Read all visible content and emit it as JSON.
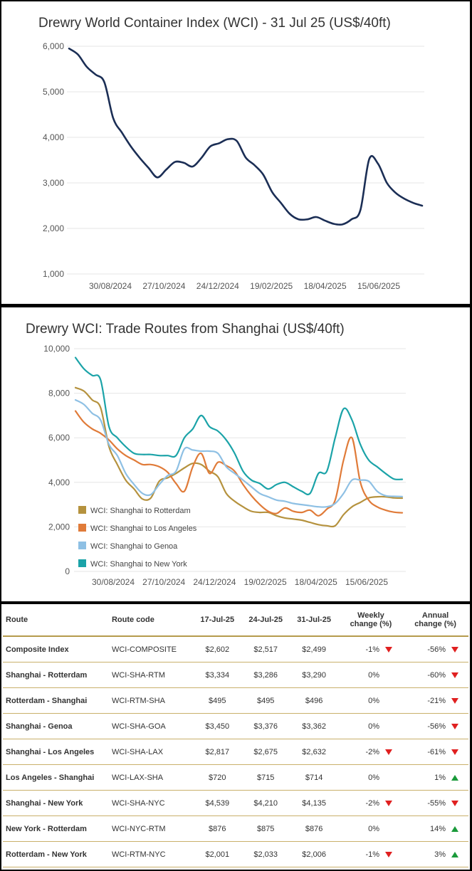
{
  "chart_data": [
    {
      "type": "line",
      "title": "Drewry World Container Index (WCI) - 31 Jul 25 (US$/40ft)",
      "xlabel": "",
      "ylabel": "",
      "ylim": [
        1000,
        6000
      ],
      "yticks": [
        1000,
        2000,
        3000,
        4000,
        5000,
        6000
      ],
      "ytick_labels": [
        "1,000",
        "2,000",
        "3,000",
        "4,000",
        "5,000",
        "6,000"
      ],
      "xticks": [
        "30/08/2024",
        "27/10/2024",
        "24/12/2024",
        "19/02/2025",
        "18/04/2025",
        "15/06/2025"
      ],
      "grid": true,
      "legend": "none",
      "colors": [
        "#1b2e55"
      ],
      "series": [
        {
          "values": [
            5950,
            5820,
            5550,
            5380,
            5210,
            4420,
            4100,
            3800,
            3550,
            3330,
            3120,
            3290,
            3460,
            3440,
            3360,
            3550,
            3800,
            3870,
            3960,
            3920,
            3560,
            3390,
            3180,
            2800,
            2560,
            2320,
            2200,
            2200,
            2250,
            2170,
            2100,
            2090,
            2200,
            2400,
            3520,
            3420,
            3000,
            2780,
            2650,
            2560,
            2499
          ]
        }
      ]
    },
    {
      "type": "line",
      "title": "Drewry WCI: Trade Routes from Shanghai (US$/40ft)",
      "xlabel": "",
      "ylabel": "",
      "ylim": [
        0,
        10000
      ],
      "yticks": [
        0,
        2000,
        4000,
        6000,
        8000,
        10000
      ],
      "ytick_labels": [
        "0",
        "2,000",
        "4,000",
        "6,000",
        "8,000",
        "10,000"
      ],
      "xticks": [
        "30/08/2024",
        "27/10/2024",
        "24/12/2024",
        "19/02/2025",
        "18/04/2025",
        "15/06/2025"
      ],
      "grid": true,
      "legend": "bottom-left",
      "series": [
        {
          "name": "WCI: Shanghai to Rotterdam",
          "color": "#b5923e",
          "values": [
            8250,
            8100,
            7700,
            7350,
            5600,
            4800,
            4100,
            3700,
            3250,
            3300,
            4050,
            4200,
            4400,
            4650,
            4850,
            4800,
            4500,
            4250,
            3500,
            3150,
            2900,
            2700,
            2650,
            2650,
            2500,
            2400,
            2350,
            2300,
            2200,
            2100,
            2050,
            2050,
            2550,
            2900,
            3100,
            3300,
            3350,
            3350,
            3300,
            3290
          ]
        },
        {
          "name": "WCI: Shanghai to Los Angeles",
          "color": "#e07b39",
          "values": [
            7200,
            6700,
            6400,
            6200,
            5900,
            5500,
            5200,
            5000,
            4800,
            4800,
            4700,
            4450,
            3950,
            3600,
            4700,
            5300,
            4400,
            4900,
            4750,
            4500,
            3900,
            3400,
            3000,
            2700,
            2600,
            2850,
            2700,
            2650,
            2750,
            2500,
            2800,
            3200,
            5000,
            6000,
            4000,
            3200,
            2900,
            2750,
            2660,
            2632
          ]
        },
        {
          "name": "WCI: Shanghai to Genoa",
          "color": "#8ec0e4",
          "values": [
            7700,
            7500,
            7100,
            6800,
            5700,
            5200,
            4400,
            3900,
            3500,
            3450,
            3900,
            4300,
            4500,
            5500,
            5450,
            5400,
            5400,
            5300,
            4700,
            4400,
            4100,
            3800,
            3500,
            3350,
            3200,
            3150,
            3050,
            3000,
            2950,
            2900,
            2900,
            3050,
            3500,
            4100,
            4100,
            4050,
            3600,
            3400,
            3370,
            3362
          ]
        },
        {
          "name": "WCI: Shanghai to New York",
          "color": "#1ba3a8",
          "values": [
            9600,
            9100,
            8800,
            8600,
            6500,
            6000,
            5600,
            5300,
            5250,
            5250,
            5200,
            5200,
            5200,
            6000,
            6400,
            7000,
            6500,
            6300,
            5900,
            5300,
            4500,
            4100,
            3950,
            3700,
            3900,
            4000,
            3800,
            3600,
            3500,
            4400,
            4500,
            6000,
            7300,
            6800,
            5700,
            5000,
            4700,
            4400,
            4150,
            4135
          ]
        }
      ]
    }
  ],
  "table": {
    "headers": [
      [
        "Route"
      ],
      [
        "Route code"
      ],
      [
        "17-Jul-25"
      ],
      [
        "24-Jul-25"
      ],
      [
        "31-Jul-25"
      ],
      [
        "Weekly",
        "change (%)"
      ],
      [
        "Annual",
        "change (%)"
      ]
    ],
    "rows": [
      {
        "route": "Composite Index",
        "code": "WCI-COMPOSITE",
        "v1": "$2,602",
        "v2": "$2,517",
        "v3": "$2,499",
        "weekly": "-1%",
        "weekly_dir": "down",
        "annual": "-56%",
        "annual_dir": "down"
      },
      {
        "route": "Shanghai - Rotterdam",
        "code": "WCI-SHA-RTM",
        "v1": "$3,334",
        "v2": "$3,286",
        "v3": "$3,290",
        "weekly": "0%",
        "weekly_dir": "",
        "annual": "-60%",
        "annual_dir": "down"
      },
      {
        "route": "Rotterdam - Shanghai",
        "code": "WCI-RTM-SHA",
        "v1": "$495",
        "v2": "$495",
        "v3": "$496",
        "weekly": "0%",
        "weekly_dir": "",
        "annual": "-21%",
        "annual_dir": "down"
      },
      {
        "route": "Shanghai - Genoa",
        "code": "WCI-SHA-GOA",
        "v1": "$3,450",
        "v2": "$3,376",
        "v3": "$3,362",
        "weekly": "0%",
        "weekly_dir": "",
        "annual": "-56%",
        "annual_dir": "down"
      },
      {
        "route": "Shanghai - Los Angeles",
        "code": "WCI-SHA-LAX",
        "v1": "$2,817",
        "v2": "$2,675",
        "v3": "$2,632",
        "weekly": "-2%",
        "weekly_dir": "down",
        "annual": "-61%",
        "annual_dir": "down"
      },
      {
        "route": "Los Angeles - Shanghai",
        "code": "WCI-LAX-SHA",
        "v1": "$720",
        "v2": "$715",
        "v3": "$714",
        "weekly": "0%",
        "weekly_dir": "",
        "annual": "1%",
        "annual_dir": "up"
      },
      {
        "route": "Shanghai - New York",
        "code": "WCI-SHA-NYC",
        "v1": "$4,539",
        "v2": "$4,210",
        "v3": "$4,135",
        "weekly": "-2%",
        "weekly_dir": "down",
        "annual": "-55%",
        "annual_dir": "down"
      },
      {
        "route": "New York - Rotterdam",
        "code": "WCI-NYC-RTM",
        "v1": "$876",
        "v2": "$875",
        "v3": "$876",
        "weekly": "0%",
        "weekly_dir": "",
        "annual": "14%",
        "annual_dir": "up"
      },
      {
        "route": "Rotterdam - New York",
        "code": "WCI-RTM-NYC",
        "v1": "$2,001",
        "v2": "$2,033",
        "v3": "$2,006",
        "weekly": "-1%",
        "weekly_dir": "down",
        "annual": "3%",
        "annual_dir": "up"
      }
    ],
    "colors": {
      "down": "#e02020",
      "up": "#1a9a3a",
      "rule": "#b59b4c"
    }
  }
}
